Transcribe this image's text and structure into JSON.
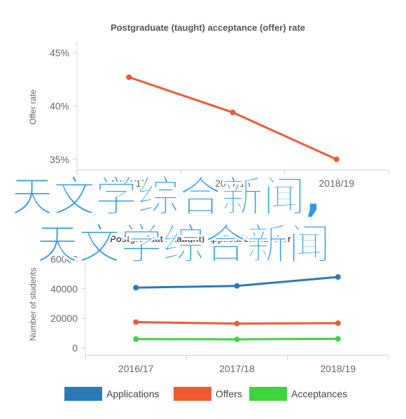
{
  "overlay": {
    "line1": "天文学综合新闻,",
    "line2": "天文学综合新闻"
  },
  "chart_data": [
    {
      "type": "line",
      "title": "Postgraduate (taught) acceptance (offer) rate",
      "xlabel": "",
      "ylabel": "Offer rate",
      "categories": [
        "2016/17",
        "2017/18",
        "2018/19"
      ],
      "y_ticks": [
        "35%",
        "40%",
        "45%"
      ],
      "ylim": [
        34,
        46
      ],
      "grid": false,
      "series": [
        {
          "color": "#ef5a38",
          "values": [
            42.7,
            39.4,
            35.0
          ]
        }
      ]
    },
    {
      "type": "line",
      "title": "Postgraduate (taught) application numbers",
      "xlabel": "",
      "ylabel": "Number of students",
      "categories": [
        "2016/17",
        "2017/18",
        "2018/19"
      ],
      "y_ticks": [
        "0",
        "20000",
        "40000",
        "60000"
      ],
      "ylim": [
        -5000,
        66000
      ],
      "grid": false,
      "legend_position": "bottom",
      "series": [
        {
          "name": "Applications",
          "color": "#2a7ab8",
          "values": [
            40800,
            42000,
            48000
          ]
        },
        {
          "name": "Offers",
          "color": "#f05a32",
          "values": [
            17500,
            16500,
            16800
          ]
        },
        {
          "name": "Acceptances",
          "color": "#3dd43d",
          "values": [
            6000,
            5800,
            6200
          ]
        }
      ]
    }
  ]
}
